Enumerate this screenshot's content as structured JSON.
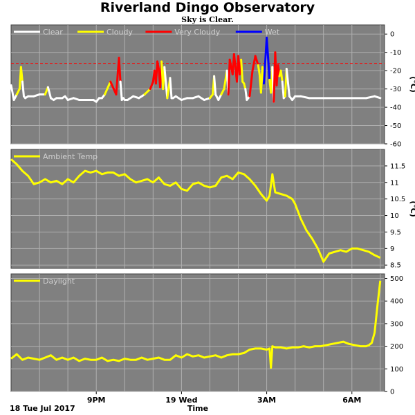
{
  "page": {
    "title": "Riverland Dingo Observatory",
    "subtitle": "Sky is Clear."
  },
  "colors": {
    "panel_bg": "#808080",
    "grid": "#b0b0b0",
    "clear": "#ffffff",
    "cloudy": "#ffff00",
    "very_cloudy": "#ff0000",
    "wet": "#0000ff",
    "threshold": "#ff0000",
    "ambient": "#ffff00",
    "daylight": "#ffff00"
  },
  "time_axis": {
    "xlabel": "Time",
    "date_label": "18 Tue Jul 2017",
    "ticks": [
      {
        "t": 21.0,
        "label": "9PM"
      },
      {
        "t": 24.0,
        "label": "19 Wed"
      },
      {
        "t": 27.0,
        "label": "3AM"
      },
      {
        "t": 30.0,
        "label": "6AM"
      }
    ]
  },
  "chart_data": [
    {
      "type": "line",
      "name": "sky",
      "legend": [
        "Clear",
        "Cloudy",
        "Very Cloudy",
        "Wet"
      ],
      "ylabel": "(°C)",
      "ylim": [
        -60,
        5
      ],
      "yticks": [
        0,
        -10,
        -20,
        -30,
        -40,
        -50,
        -60
      ],
      "threshold": -16,
      "x_unit": "hours after Jul 18 00:00",
      "x": [
        18.0,
        18.1,
        18.2,
        18.3,
        18.35,
        18.4,
        18.45,
        18.5,
        18.6,
        18.8,
        19.0,
        19.2,
        19.3,
        19.4,
        19.5,
        19.6,
        19.7,
        19.75,
        19.8,
        19.9,
        20.0,
        20.2,
        20.4,
        20.6,
        20.8,
        20.9,
        21.0,
        21.1,
        21.2,
        21.3,
        21.5,
        21.7,
        21.8,
        21.85,
        21.9,
        21.95,
        22.0,
        22.1,
        22.3,
        22.5,
        22.7,
        22.9,
        23.0,
        23.05,
        23.1,
        23.15,
        23.2,
        23.25,
        23.3,
        23.35,
        23.4,
        23.5,
        23.6,
        23.65,
        23.7,
        23.8,
        24.0,
        24.2,
        24.4,
        24.6,
        24.8,
        25.0,
        25.1,
        25.15,
        25.2,
        25.3,
        25.4,
        25.5,
        25.6,
        25.65,
        25.7,
        25.8,
        25.85,
        25.9,
        25.95,
        26.0,
        26.05,
        26.1,
        26.15,
        26.2,
        26.25,
        26.3,
        26.4,
        26.5,
        26.6,
        26.7,
        26.75,
        26.8,
        26.85,
        26.9,
        26.95,
        27.0,
        27.05,
        27.1,
        27.15,
        27.2,
        27.25,
        27.3,
        27.35,
        27.4,
        27.45,
        27.5,
        27.55,
        27.6,
        27.65,
        27.7,
        27.8,
        27.9,
        28.0,
        28.2,
        28.5,
        29.0,
        29.5,
        30.0,
        30.5,
        30.8,
        31.0
      ],
      "y": [
        -28,
        -36,
        -33,
        -30,
        -18,
        -26,
        -34,
        -35,
        -34,
        -34,
        -33,
        -33,
        -29,
        -35,
        -36,
        -35,
        -35,
        -35,
        -35,
        -34,
        -36,
        -35,
        -36,
        -36,
        -36,
        -36,
        -37,
        -35,
        -35,
        -33,
        -26,
        -33,
        -13,
        -26,
        -36,
        -35,
        -36,
        -36,
        -34,
        -35,
        -33,
        -30,
        -26,
        -20,
        -27,
        -15,
        -19,
        -29,
        -15,
        -30,
        -18,
        -35,
        -24,
        -35,
        -35,
        -34,
        -36,
        -35,
        -35,
        -34,
        -36,
        -35,
        -33,
        -23,
        -33,
        -36,
        -33,
        -30,
        -20,
        -33,
        -14,
        -22,
        -11,
        -18,
        -26,
        -12,
        -22,
        -14,
        -26,
        -27,
        -30,
        -36,
        -34,
        -20,
        -12,
        -17,
        -22,
        -32,
        -18,
        -27,
        -15,
        -2,
        -13,
        -25,
        -32,
        -18,
        -37,
        -10,
        -28,
        -17,
        -23,
        -20,
        -26,
        -35,
        -34,
        -19,
        -34,
        -36,
        -34,
        -34,
        -35,
        -35,
        -35,
        -35,
        -35,
        -34,
        -35
      ],
      "cat": [
        "c",
        "c",
        "c",
        "y",
        "y",
        "y",
        "c",
        "c",
        "c",
        "c",
        "c",
        "c",
        "y",
        "c",
        "c",
        "c",
        "c",
        "c",
        "c",
        "c",
        "c",
        "c",
        "c",
        "c",
        "c",
        "c",
        "c",
        "c",
        "c",
        "c",
        "y",
        "r",
        "r",
        "r",
        "c",
        "c",
        "c",
        "c",
        "c",
        "c",
        "c",
        "y",
        "r",
        "r",
        "r",
        "r",
        "r",
        "r",
        "r",
        "y",
        "y",
        "c",
        "y",
        "c",
        "c",
        "c",
        "c",
        "c",
        "c",
        "c",
        "c",
        "c",
        "y",
        "y",
        "c",
        "c",
        "c",
        "y",
        "y",
        "c",
        "r",
        "r",
        "r",
        "r",
        "r",
        "r",
        "r",
        "r",
        "y",
        "y",
        "y",
        "c",
        "c",
        "r",
        "r",
        "r",
        "y",
        "y",
        "y",
        "y",
        "b",
        "b",
        "b",
        "b",
        "y",
        "y",
        "c",
        "r",
        "r",
        "r",
        "r",
        "y",
        "y",
        "c",
        "c",
        "y",
        "c",
        "c",
        "c",
        "c",
        "c",
        "c",
        "c",
        "c",
        "c",
        "c",
        "c"
      ]
    },
    {
      "type": "line",
      "name": "ambient",
      "legend": [
        "Ambient Temp"
      ],
      "ylabel": "(°C)",
      "ylim": [
        8.4,
        12.0
      ],
      "yticks": [
        11.5,
        11.0,
        10.5,
        10.0,
        9.5,
        9.0,
        8.5
      ],
      "x_unit": "hours after Jul 18 00:00",
      "x": [
        18.0,
        18.2,
        18.4,
        18.6,
        18.8,
        19.0,
        19.2,
        19.4,
        19.6,
        19.8,
        20.0,
        20.2,
        20.4,
        20.6,
        20.8,
        21.0,
        21.2,
        21.4,
        21.6,
        21.8,
        22.0,
        22.2,
        22.4,
        22.6,
        22.8,
        23.0,
        23.2,
        23.4,
        23.6,
        23.8,
        24.0,
        24.2,
        24.4,
        24.6,
        24.8,
        25.0,
        25.2,
        25.4,
        25.6,
        25.8,
        26.0,
        26.2,
        26.4,
        26.6,
        26.8,
        27.0,
        27.1,
        27.2,
        27.3,
        27.5,
        27.7,
        27.9,
        28.0,
        28.2,
        28.4,
        28.6,
        28.8,
        29.0,
        29.2,
        29.4,
        29.6,
        29.8,
        30.0,
        30.2,
        30.4,
        30.6,
        30.8,
        31.0
      ],
      "y": [
        11.7,
        11.55,
        11.35,
        11.2,
        10.95,
        11.0,
        11.1,
        11.0,
        11.05,
        10.95,
        11.1,
        11.0,
        11.2,
        11.35,
        11.3,
        11.35,
        11.25,
        11.3,
        11.3,
        11.2,
        11.25,
        11.1,
        11.0,
        11.05,
        11.1,
        11.0,
        11.15,
        10.95,
        10.9,
        11.0,
        10.8,
        10.75,
        10.95,
        11.0,
        10.9,
        10.85,
        10.9,
        11.15,
        11.2,
        11.1,
        11.3,
        11.25,
        11.1,
        10.9,
        10.65,
        10.45,
        10.6,
        11.25,
        10.7,
        10.65,
        10.6,
        10.5,
        10.35,
        9.9,
        9.55,
        9.3,
        9.0,
        8.6,
        8.85,
        8.9,
        8.95,
        8.9,
        9.0,
        9.0,
        8.95,
        8.9,
        8.8,
        8.72
      ]
    },
    {
      "type": "line",
      "name": "daylight",
      "legend": [
        "Daylight"
      ],
      "ylabel": "",
      "ylim": [
        0,
        520
      ],
      "yticks": [
        500,
        400,
        300,
        200,
        100,
        0
      ],
      "x_unit": "hours after Jul 18 00:00",
      "x": [
        18.0,
        18.2,
        18.4,
        18.6,
        18.8,
        19.0,
        19.2,
        19.4,
        19.6,
        19.8,
        20.0,
        20.2,
        20.4,
        20.6,
        20.8,
        21.0,
        21.2,
        21.4,
        21.6,
        21.8,
        22.0,
        22.2,
        22.4,
        22.6,
        22.8,
        23.0,
        23.2,
        23.4,
        23.6,
        23.8,
        24.0,
        24.2,
        24.4,
        24.6,
        24.8,
        25.0,
        25.2,
        25.4,
        25.6,
        25.8,
        26.0,
        26.2,
        26.4,
        26.6,
        26.8,
        27.0,
        27.1,
        27.15,
        27.2,
        27.3,
        27.5,
        27.7,
        27.9,
        28.1,
        28.3,
        28.5,
        28.7,
        28.9,
        29.1,
        29.3,
        29.5,
        29.7,
        29.9,
        30.1,
        30.3,
        30.5,
        30.6,
        30.7,
        30.8,
        30.9,
        31.0
      ],
      "y": [
        145,
        165,
        140,
        150,
        145,
        140,
        150,
        160,
        140,
        150,
        140,
        150,
        135,
        145,
        140,
        140,
        150,
        135,
        140,
        135,
        145,
        140,
        140,
        150,
        140,
        145,
        150,
        140,
        140,
        160,
        150,
        165,
        155,
        160,
        150,
        155,
        160,
        150,
        160,
        165,
        165,
        170,
        185,
        190,
        190,
        185,
        190,
        105,
        200,
        195,
        195,
        190,
        195,
        195,
        200,
        195,
        200,
        200,
        205,
        210,
        215,
        220,
        210,
        205,
        200,
        200,
        205,
        215,
        260,
        380,
        490
      ]
    }
  ]
}
